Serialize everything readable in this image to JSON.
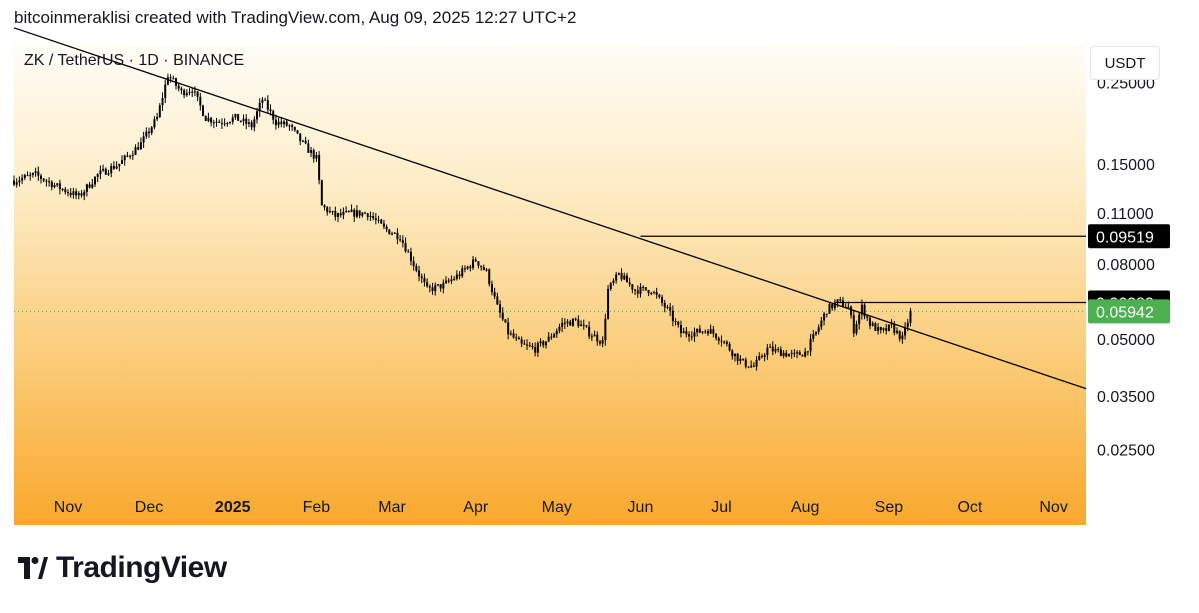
{
  "header": {
    "text": "bitcoinmeraklisi created with TradingView.com, Aug 09, 2025 12:27 UTC+2"
  },
  "symbol": {
    "label": "ZK / TetherUS · 1D · BINANCE"
  },
  "currency": "USDT",
  "brand": {
    "name": "TradingView"
  },
  "colors": {
    "last_price": "#4caf50",
    "marker": "#000000",
    "background_top": "#fffdf8",
    "background_bottom": "#f9a82c"
  },
  "chart_data": {
    "type": "candlestick",
    "scale": "log",
    "ylim": [
      0.02,
      0.32
    ],
    "y_ticks": [
      {
        "value": 0.25,
        "label": "0.25000"
      },
      {
        "value": 0.15,
        "label": "0.15000"
      },
      {
        "value": 0.11,
        "label": "0.11000"
      },
      {
        "value": 0.08,
        "label": "0.08000"
      },
      {
        "value": 0.05,
        "label": "0.05000"
      },
      {
        "value": 0.035,
        "label": "0.03500"
      },
      {
        "value": 0.025,
        "label": "0.02500"
      }
    ],
    "x_ticks": [
      {
        "date": "2024-11-01",
        "label": "Nov"
      },
      {
        "date": "2024-12-01",
        "label": "Dec"
      },
      {
        "date": "2025-01-01",
        "label": "2025"
      },
      {
        "date": "2025-02-01",
        "label": "Feb"
      },
      {
        "date": "2025-03-01",
        "label": "Mar"
      },
      {
        "date": "2025-04-01",
        "label": "Apr"
      },
      {
        "date": "2025-05-01",
        "label": "May"
      },
      {
        "date": "2025-06-01",
        "label": "Jun"
      },
      {
        "date": "2025-07-01",
        "label": "Jul"
      },
      {
        "date": "2025-08-01",
        "label": "Aug"
      },
      {
        "date": "2025-09-01",
        "label": "Sep"
      },
      {
        "date": "2025-10-01",
        "label": "Oct"
      },
      {
        "date": "2025-11-01",
        "label": "Nov"
      }
    ],
    "xlim": [
      "2024-10-12",
      "2025-11-13"
    ],
    "series_anchors": [
      [
        "2024-10-12",
        0.135
      ],
      [
        "2024-10-20",
        0.14
      ],
      [
        "2024-10-28",
        0.13
      ],
      [
        "2024-11-05",
        0.122
      ],
      [
        "2024-11-12",
        0.14
      ],
      [
        "2024-11-20",
        0.15
      ],
      [
        "2024-11-28",
        0.17
      ],
      [
        "2024-12-04",
        0.2
      ],
      [
        "2024-12-08",
        0.262
      ],
      [
        "2024-12-13",
        0.235
      ],
      [
        "2024-12-17",
        0.24
      ],
      [
        "2024-12-22",
        0.2
      ],
      [
        "2024-12-27",
        0.195
      ],
      [
        "2025-01-02",
        0.2
      ],
      [
        "2025-01-08",
        0.19
      ],
      [
        "2025-01-12",
        0.225
      ],
      [
        "2025-01-17",
        0.195
      ],
      [
        "2025-01-22",
        0.19
      ],
      [
        "2025-01-27",
        0.17
      ],
      [
        "2025-02-01",
        0.155
      ],
      [
        "2025-02-03",
        0.115
      ],
      [
        "2025-02-08",
        0.108
      ],
      [
        "2025-02-14",
        0.11
      ],
      [
        "2025-02-20",
        0.11
      ],
      [
        "2025-02-26",
        0.1
      ],
      [
        "2025-03-04",
        0.095
      ],
      [
        "2025-03-09",
        0.08
      ],
      [
        "2025-03-14",
        0.068
      ],
      [
        "2025-03-20",
        0.07
      ],
      [
        "2025-03-26",
        0.075
      ],
      [
        "2025-04-01",
        0.082
      ],
      [
        "2025-04-05",
        0.076
      ],
      [
        "2025-04-09",
        0.061
      ],
      [
        "2025-04-13",
        0.052
      ],
      [
        "2025-04-18",
        0.048
      ],
      [
        "2025-04-23",
        0.047
      ],
      [
        "2025-04-28",
        0.05
      ],
      [
        "2025-05-03",
        0.055
      ],
      [
        "2025-05-08",
        0.056
      ],
      [
        "2025-05-13",
        0.052
      ],
      [
        "2025-05-18",
        0.049
      ],
      [
        "2025-05-20",
        0.068
      ],
      [
        "2025-05-24",
        0.075
      ],
      [
        "2025-05-30",
        0.068
      ],
      [
        "2025-06-05",
        0.068
      ],
      [
        "2025-06-11",
        0.06
      ],
      [
        "2025-06-16",
        0.052
      ],
      [
        "2025-06-21",
        0.052
      ],
      [
        "2025-06-26",
        0.053
      ],
      [
        "2025-07-01",
        0.05
      ],
      [
        "2025-07-05",
        0.046
      ],
      [
        "2025-07-09",
        0.043
      ],
      [
        "2025-07-13",
        0.042
      ],
      [
        "2025-07-18",
        0.047
      ],
      [
        "2025-07-23",
        0.046
      ],
      [
        "2025-07-28",
        0.045
      ],
      [
        "2025-08-01",
        0.046
      ],
      [
        "2025-08-05",
        0.052
      ],
      [
        "2025-08-09",
        0.06
      ],
      [
        "2025-08-13",
        0.063
      ],
      [
        "2025-08-17",
        0.061
      ],
      [
        "2025-08-19",
        0.053
      ],
      [
        "2025-08-22",
        0.061
      ],
      [
        "2025-08-25",
        0.055
      ],
      [
        "2025-08-29",
        0.052
      ],
      [
        "2025-09-02",
        0.054
      ],
      [
        "2025-09-06",
        0.05
      ],
      [
        "2025-09-09",
        0.059
      ]
    ],
    "trendline": {
      "start": [
        "2024-10-12",
        0.352
      ],
      "end": [
        "2025-11-13",
        0.0366
      ]
    },
    "horizontal_lines": [
      {
        "start": "2025-06-01",
        "value": 0.09519
      },
      {
        "start": "2025-08-12",
        "value": 0.06283
      }
    ],
    "price_labels": [
      {
        "value": 0.09519,
        "label": "0.09519",
        "color": "#000000"
      },
      {
        "value": 0.06283,
        "label": "0.06283",
        "color": "#000000"
      },
      {
        "value": 0.05942,
        "label": "0.05942",
        "color": "#4caf50"
      }
    ],
    "last_price": 0.05942
  }
}
